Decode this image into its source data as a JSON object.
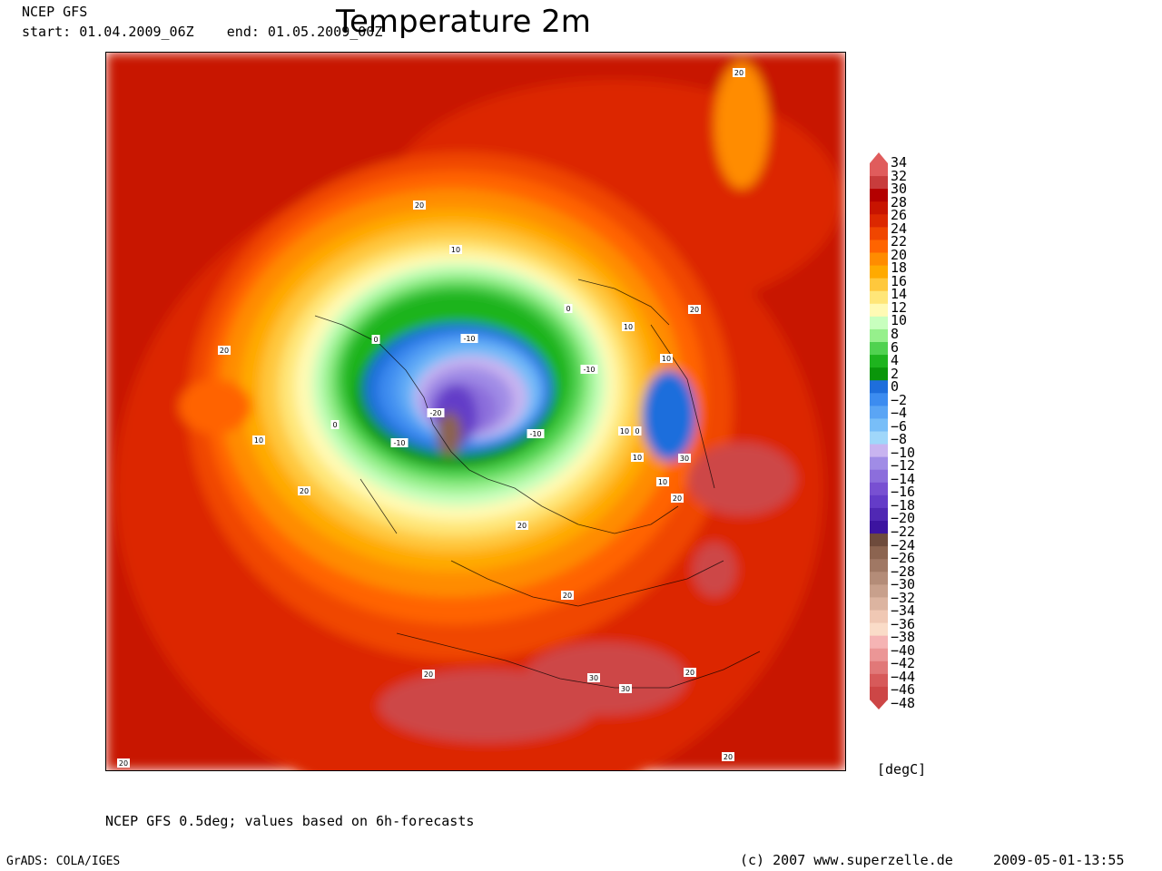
{
  "header": {
    "model": "NCEP GFS",
    "period": "start: 01.04.2009_06Z    end: 01.05.2009_00Z",
    "title": "Temperature 2m"
  },
  "legend": {
    "unit": "[degC]",
    "levels": [
      "34",
      "32",
      "30",
      "28",
      "26",
      "24",
      "22",
      "20",
      "18",
      "16",
      "14",
      "12",
      "10",
      "8",
      "6",
      "4",
      "2",
      "0",
      "-2",
      "-4",
      "-6",
      "-8",
      "-10",
      "-12",
      "-14",
      "-16",
      "-18",
      "-20",
      "-22",
      "-24",
      "-26",
      "-28",
      "-30",
      "-32",
      "-34",
      "-36",
      "-38",
      "-40",
      "-42",
      "-44",
      "-46",
      "-48"
    ],
    "colors": [
      "#e05c5c",
      "#c83c3c",
      "#b40000",
      "#c81400",
      "#dc2800",
      "#f04600",
      "#ff6400",
      "#ff8c00",
      "#ffaa00",
      "#ffc83c",
      "#ffe678",
      "#fffab4",
      "#c8ffbe",
      "#96f08c",
      "#50d250",
      "#1eb41e",
      "#0a960a",
      "#1e6edc",
      "#3c8cf0",
      "#5aa5f5",
      "#78bef8",
      "#a0d7fa",
      "#c8b4f0",
      "#a08ce6",
      "#8c6edc",
      "#7850d2",
      "#643cc8",
      "#5028b4",
      "#3c14a0",
      "#6e4b3c",
      "#8c6450",
      "#a07864",
      "#b48c78",
      "#c8a08c",
      "#dcb4a0",
      "#f0c8b4",
      "#fadcc8",
      "#f5b4b4",
      "#eb9696",
      "#e17878",
      "#d75a5a",
      "#cd4646"
    ]
  },
  "map": {
    "contour_labels": [
      "20",
      "20",
      "10",
      "0",
      "-10",
      "-20",
      "-10",
      "-10",
      "-10",
      "0",
      "10",
      "10",
      "0",
      "10",
      "10",
      "0",
      "10",
      "20",
      "20",
      "20",
      "10",
      "20",
      "30",
      "30",
      "30",
      "20",
      "20",
      "20",
      "20",
      "20",
      "20"
    ]
  },
  "footer": {
    "note": "NCEP GFS 0.5deg; values based on 6h-forecasts",
    "grads": "GrADS: COLA/IGES",
    "copyright": "(c) 2007 www.superzelle.de",
    "timestamp": "2009-05-01-13:55"
  }
}
